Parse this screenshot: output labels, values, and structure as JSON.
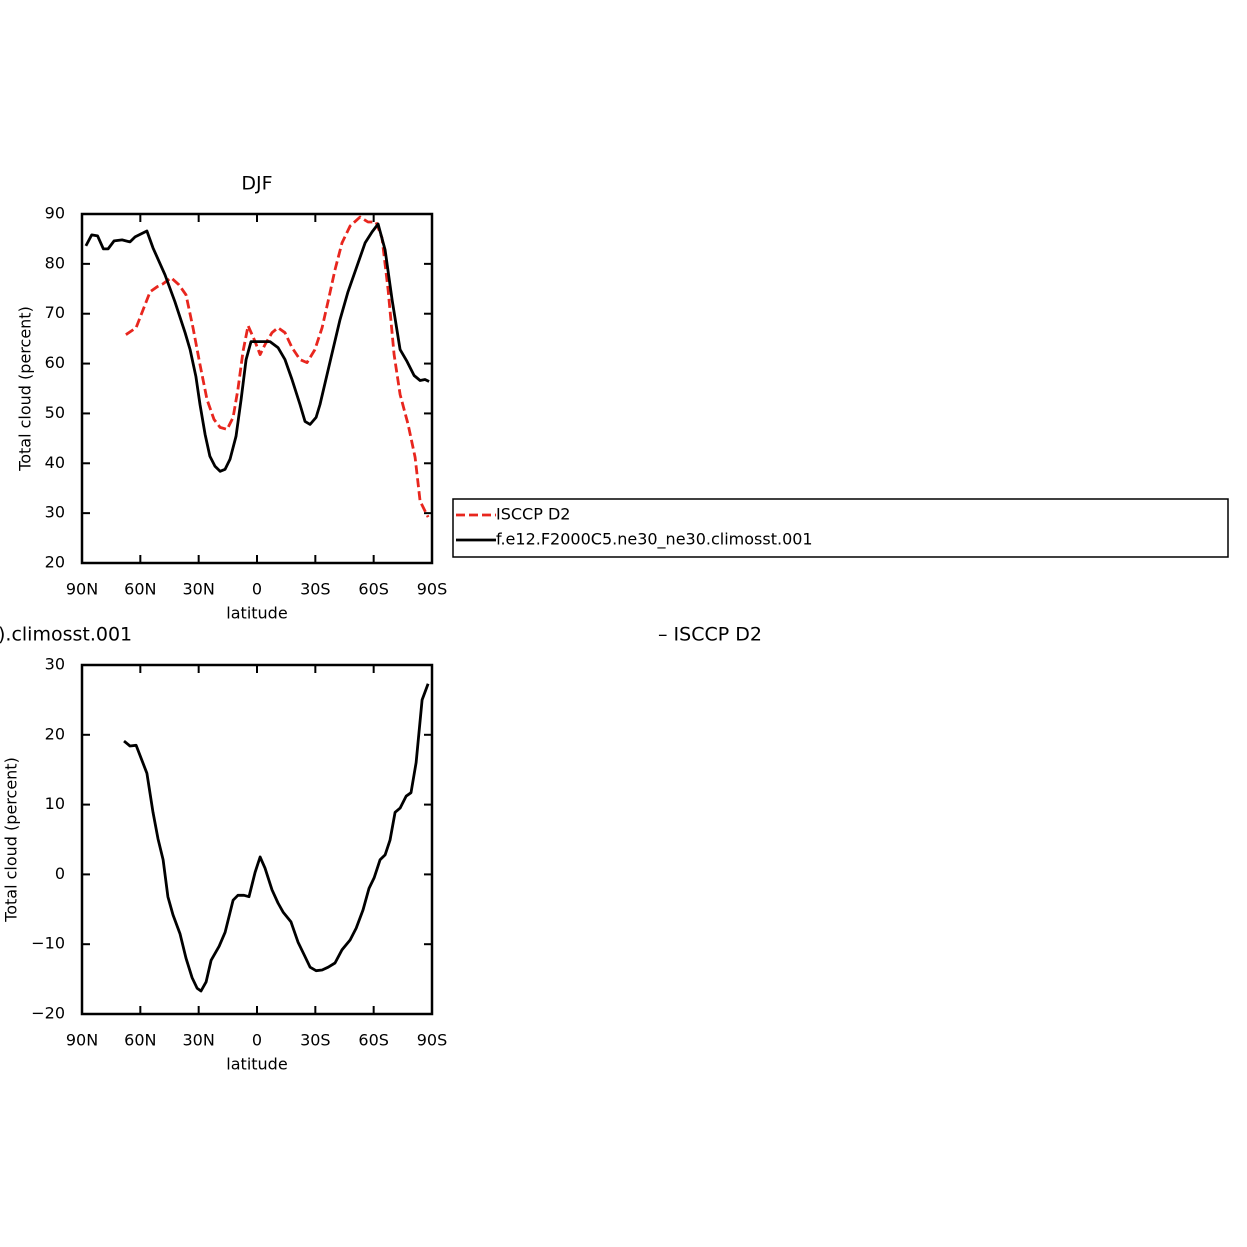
{
  "chart_data": [
    {
      "type": "line",
      "title": "DJF",
      "xlabel": "latitude",
      "ylabel": "Total cloud (percent)",
      "xlim": [
        90,
        -90
      ],
      "ylim": [
        20,
        90
      ],
      "xticks": [
        {
          "value": 90,
          "label": "90N"
        },
        {
          "value": 60,
          "label": "60N"
        },
        {
          "value": 30,
          "label": "30N"
        },
        0,
        {
          "value": -30,
          "label": "30S"
        },
        {
          "value": -60,
          "label": "60S"
        },
        {
          "value": -90,
          "label": "90S"
        }
      ],
      "yticks": [
        20,
        30,
        40,
        50,
        60,
        70,
        80,
        90
      ],
      "legend": "right",
      "series": [
        {
          "name": "ISCCP D2",
          "color": "#e8261e",
          "dashed": true,
          "x": [
            67.4,
            62.2,
            58.6,
            55,
            51.4,
            48.3,
            44.2,
            40.1,
            36.5,
            32.9,
            29.3,
            25.7,
            22.1,
            19,
            15.4,
            12.3,
            9.8,
            7.2,
            4.6,
            1,
            -1.6,
            -4.1,
            -7.7,
            -10.8,
            -14.4,
            -18,
            -22.1,
            -25.7,
            -29.8,
            -33.5,
            -36.5,
            -40.1,
            -43.7,
            -47.9,
            -53,
            -57.1,
            -61.2,
            -64.3,
            -67.4,
            -70.5,
            -73.6,
            -77.7,
            -81.3,
            -83.9,
            -88
          ],
          "values": [
            65.8,
            67.2,
            70.8,
            74.4,
            75.4,
            76,
            77.2,
            75.8,
            73.8,
            67.2,
            59.8,
            52.8,
            48.8,
            47.2,
            46.8,
            49.2,
            54.8,
            62.4,
            67.6,
            64.4,
            61.8,
            63.8,
            66.2,
            67.2,
            66.2,
            63.2,
            60.8,
            60.2,
            62.8,
            67.2,
            72.4,
            78.8,
            84.2,
            87.6,
            89.4,
            88.4,
            88.4,
            85.2,
            74.8,
            61.8,
            53.8,
            47.8,
            41.2,
            32.4,
            29.2
          ]
        },
        {
          "name": "f.e12.F2000C5.ne30_ne30.climosst.001",
          "color": "#000000",
          "dashed": false,
          "x": [
            88,
            85,
            82,
            79,
            76.6,
            73.5,
            69.4,
            65.3,
            62.7,
            56.6,
            53.5,
            47.3,
            42.2,
            37,
            34.4,
            31.4,
            29.3,
            26.7,
            24.2,
            21.6,
            19,
            16.4,
            13.9,
            10.8,
            8.2,
            5.6,
            3.1,
            -2.6,
            -6.7,
            -10.8,
            -14.4,
            -18,
            -22.1,
            -24.7,
            -27.3,
            -30.4,
            -32.4,
            -37.6,
            -42.7,
            -46.8,
            -50.4,
            -55.6,
            -59.2,
            -62.3,
            -65.9,
            -69.5,
            -73.6,
            -77.2,
            -80.8,
            -83.9,
            -86.4,
            -88.5
          ],
          "values": [
            83.6,
            85.8,
            85.6,
            83,
            83,
            84.6,
            84.8,
            84.4,
            85.4,
            86.6,
            83.2,
            77.8,
            72.4,
            66.2,
            62.8,
            57.4,
            51.8,
            45.8,
            41.4,
            39.4,
            38.4,
            38.8,
            40.8,
            45.4,
            52.8,
            60.8,
            64.4,
            64.4,
            64.4,
            63.2,
            60.8,
            56.8,
            51.8,
            48.4,
            47.8,
            49.2,
            51.8,
            60.4,
            68.8,
            74.4,
            78.4,
            84.2,
            86.4,
            88,
            82.8,
            72.8,
            62.8,
            60.4,
            57.6,
            56.6,
            56.8,
            56.4
          ]
        }
      ]
    },
    {
      "type": "line",
      "title": [
        ").climosst.001",
        "– ISCCP D2"
      ],
      "xlabel": "latitude",
      "ylabel": "Total cloud (percent)",
      "xlim": [
        90,
        -90
      ],
      "ylim": [
        -20,
        30
      ],
      "xticks": [
        {
          "value": 90,
          "label": "90N"
        },
        {
          "value": 60,
          "label": "60N"
        },
        {
          "value": 30,
          "label": "30N"
        },
        0,
        {
          "value": -30,
          "label": "30S"
        },
        {
          "value": -60,
          "label": "60S"
        },
        {
          "value": -90,
          "label": "90S"
        }
      ],
      "yticks": [
        {
          "value": -20,
          "label": "−20"
        },
        {
          "value": -10,
          "label": "−10"
        },
        0,
        10,
        20,
        30
      ],
      "series": [
        {
          "color": "#000000",
          "dashed": false,
          "x": [
            68.4,
            65.3,
            62.2,
            56.6,
            53.5,
            50.9,
            48.3,
            45.8,
            43.2,
            39.6,
            36.5,
            33.4,
            30.8,
            28.8,
            26.2,
            23.6,
            19.5,
            16.4,
            12.3,
            9.8,
            6.7,
            4.1,
            1,
            -1.6,
            -4.1,
            -7.7,
            -10.8,
            -13.4,
            -17.5,
            -21.1,
            -24.2,
            -27.3,
            -30.4,
            -33.5,
            -36.6,
            -40.1,
            -43.7,
            -47.9,
            -51,
            -54.5,
            -57.6,
            -60.2,
            -63.3,
            -65.9,
            -68.4,
            -71,
            -73.6,
            -76.7,
            -79.2,
            -81.8,
            -84.9,
            -88
          ],
          "values": [
            19.1,
            18.4,
            18.5,
            14.5,
            8.9,
            5.1,
            2.1,
            -3.2,
            -5.8,
            -8.5,
            -12,
            -14.8,
            -16.3,
            -16.7,
            -15.4,
            -12.3,
            -10.3,
            -8.3,
            -3.7,
            -3,
            -3,
            -3.2,
            0.3,
            2.5,
            0.9,
            -2.2,
            -4.1,
            -5.4,
            -6.8,
            -9.7,
            -11.5,
            -13.3,
            -13.8,
            -13.7,
            -13.3,
            -12.7,
            -10.8,
            -9.4,
            -7.7,
            -5.1,
            -2,
            -0.5,
            2.1,
            2.8,
            4.9,
            8.9,
            9.5,
            11.2,
            11.7,
            16,
            25,
            27.3
          ]
        }
      ]
    }
  ]
}
